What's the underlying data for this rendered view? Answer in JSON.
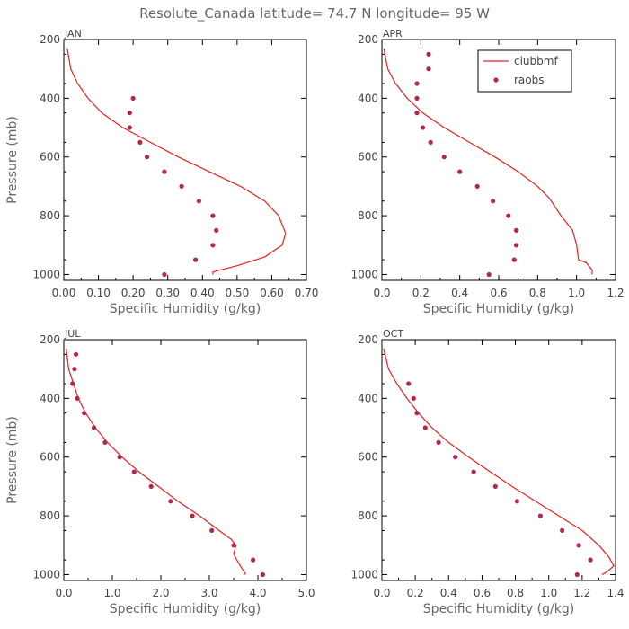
{
  "figure_title": "Resolute_Canada  latitude= 74.7 N longitude= 95 W",
  "colors": {
    "model": "#e8211d",
    "obs": "#b2274f",
    "axis": "#000000",
    "text": "#666666"
  },
  "chart_data": [
    {
      "type": "line",
      "panel": "JAN",
      "title": "JAN",
      "xlabel": "Specific Humidity (g/kg)",
      "ylabel": "Pressure (mb)",
      "xlim": [
        0,
        0.7
      ],
      "ylim": [
        1020,
        200
      ],
      "xticks": [
        0,
        0.1,
        0.2,
        0.3,
        0.4,
        0.5,
        0.6,
        0.7
      ],
      "xtick_labels": [
        "0.00",
        "0.10",
        "0.20",
        "0.30",
        "0.40",
        "0.50",
        "0.60",
        "0.70"
      ],
      "yticks": [
        200,
        400,
        600,
        800,
        1000
      ],
      "ytick_labels": [
        "200",
        "400",
        "600",
        "800",
        "1000"
      ],
      "series": [
        {
          "name": "clubbmf",
          "kind": "line",
          "x": [
            0.01,
            0.02,
            0.04,
            0.07,
            0.11,
            0.17,
            0.25,
            0.33,
            0.42,
            0.51,
            0.58,
            0.62,
            0.64,
            0.63,
            0.58,
            0.5,
            0.45,
            0.43,
            0.43
          ],
          "y": [
            230,
            300,
            350,
            400,
            450,
            500,
            550,
            600,
            650,
            700,
            750,
            800,
            860,
            900,
            940,
            970,
            985,
            992,
            1000
          ]
        },
        {
          "name": "raobs",
          "kind": "scatter",
          "x": [
            0.2,
            0.19,
            0.19,
            0.22,
            0.24,
            0.29,
            0.34,
            0.39,
            0.43,
            0.44,
            0.43,
            0.38,
            0.29
          ],
          "y": [
            400,
            450,
            500,
            550,
            600,
            650,
            700,
            750,
            800,
            850,
            900,
            950,
            1000
          ]
        }
      ]
    },
    {
      "type": "line",
      "panel": "APR",
      "title": "APR",
      "xlabel": "Specific Humidity (g/kg)",
      "ylabel": "",
      "xlim": [
        0,
        1.2
      ],
      "ylim": [
        1020,
        200
      ],
      "xticks": [
        0,
        0.2,
        0.4,
        0.6,
        0.8,
        1.0,
        1.2
      ],
      "xtick_labels": [
        "0.0",
        "0.2",
        "0.4",
        "0.6",
        "0.8",
        "1.0",
        "1.2"
      ],
      "yticks": [
        200,
        400,
        600,
        800,
        1000
      ],
      "ytick_labels": [
        "200",
        "400",
        "600",
        "800",
        "1000"
      ],
      "legend": {
        "position": "top-right",
        "entries": [
          "clubbmf",
          "raobs"
        ]
      },
      "series": [
        {
          "name": "clubbmf",
          "kind": "line",
          "x": [
            0.01,
            0.03,
            0.07,
            0.13,
            0.21,
            0.32,
            0.45,
            0.58,
            0.7,
            0.8,
            0.86,
            0.92,
            0.98,
            1.0,
            1.01,
            1.05,
            1.08,
            1.08
          ],
          "y": [
            230,
            300,
            350,
            400,
            450,
            500,
            550,
            600,
            650,
            700,
            740,
            800,
            850,
            900,
            950,
            960,
            985,
            1000
          ]
        },
        {
          "name": "raobs",
          "kind": "scatter",
          "x": [
            0.24,
            0.24,
            0.18,
            0.18,
            0.18,
            0.21,
            0.25,
            0.32,
            0.4,
            0.49,
            0.57,
            0.65,
            0.69,
            0.69,
            0.68,
            0.55
          ],
          "y": [
            250,
            300,
            350,
            400,
            450,
            500,
            550,
            600,
            650,
            700,
            750,
            800,
            850,
            900,
            950,
            1000
          ]
        }
      ]
    },
    {
      "type": "line",
      "panel": "JUL",
      "title": "JUL",
      "xlabel": "Specific Humidity (g/kg)",
      "ylabel": "Pressure (mb)",
      "xlim": [
        0,
        5.0
      ],
      "ylim": [
        1020,
        200
      ],
      "xticks": [
        0,
        1,
        2,
        3,
        4,
        5
      ],
      "xtick_labels": [
        "0.0",
        "1.0",
        "2.0",
        "3.0",
        "4.0",
        "5.0"
      ],
      "yticks": [
        200,
        400,
        600,
        800,
        1000
      ],
      "ytick_labels": [
        "200",
        "400",
        "600",
        "800",
        "1000"
      ],
      "series": [
        {
          "name": "clubbmf",
          "kind": "line",
          "x": [
            0.05,
            0.1,
            0.2,
            0.3,
            0.45,
            0.65,
            0.9,
            1.2,
            1.55,
            1.95,
            2.35,
            2.8,
            3.2,
            3.45,
            3.55,
            3.5,
            3.6,
            3.75
          ],
          "y": [
            230,
            300,
            350,
            400,
            450,
            500,
            550,
            600,
            650,
            700,
            750,
            800,
            850,
            880,
            900,
            930,
            960,
            1000
          ]
        },
        {
          "name": "raobs",
          "kind": "scatter",
          "x": [
            0.25,
            0.22,
            0.18,
            0.28,
            0.42,
            0.62,
            0.85,
            1.15,
            1.45,
            1.8,
            2.2,
            2.65,
            3.05,
            3.5,
            3.9,
            4.1
          ],
          "y": [
            250,
            300,
            350,
            400,
            450,
            500,
            550,
            600,
            650,
            700,
            750,
            800,
            850,
            900,
            950,
            1000
          ]
        }
      ]
    },
    {
      "type": "line",
      "panel": "OCT",
      "title": "OCT",
      "xlabel": "Specific Humidity (g/kg)",
      "ylabel": "",
      "xlim": [
        0,
        1.4
      ],
      "ylim": [
        1020,
        200
      ],
      "xticks": [
        0,
        0.2,
        0.4,
        0.6,
        0.8,
        1.0,
        1.2,
        1.4
      ],
      "xtick_labels": [
        "0.0",
        "0.2",
        "0.4",
        "0.6",
        "0.8",
        "1.0",
        "1.2",
        "1.4"
      ],
      "yticks": [
        200,
        400,
        600,
        800,
        1000
      ],
      "ytick_labels": [
        "200",
        "400",
        "600",
        "800",
        "1000"
      ],
      "series": [
        {
          "name": "clubbmf",
          "kind": "line",
          "x": [
            0.01,
            0.04,
            0.09,
            0.15,
            0.22,
            0.3,
            0.4,
            0.52,
            0.65,
            0.78,
            0.92,
            1.06,
            1.2,
            1.3,
            1.36,
            1.39,
            1.35,
            1.32
          ],
          "y": [
            230,
            300,
            350,
            400,
            450,
            500,
            550,
            600,
            650,
            700,
            750,
            800,
            850,
            900,
            940,
            970,
            990,
            1000
          ]
        },
        {
          "name": "raobs",
          "kind": "scatter",
          "x": [
            0.16,
            0.19,
            0.21,
            0.26,
            0.34,
            0.44,
            0.55,
            0.68,
            0.81,
            0.95,
            1.08,
            1.18,
            1.25,
            1.17
          ],
          "y": [
            350,
            400,
            450,
            500,
            550,
            600,
            650,
            700,
            750,
            800,
            850,
            900,
            950,
            1000
          ]
        }
      ]
    }
  ]
}
